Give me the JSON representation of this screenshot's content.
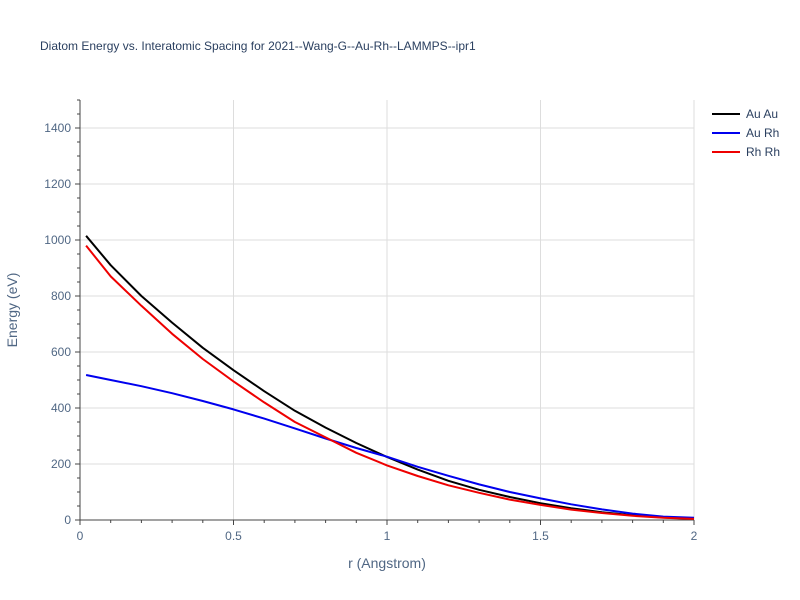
{
  "chart_data": {
    "type": "line",
    "title": "Diatom Energy vs. Interatomic Spacing for 2021--Wang-G--Au-Rh--LAMMPS--ipr1",
    "xlabel": "r (Angstrom)",
    "ylabel": "Energy (eV)",
    "xlim": [
      0,
      2
    ],
    "ylim": [
      0,
      1500
    ],
    "x_ticks": [
      {
        "value": 0,
        "label": "0"
      },
      {
        "value": 0.5,
        "label": "0.5"
      },
      {
        "value": 1,
        "label": "1"
      },
      {
        "value": 1.5,
        "label": "1.5"
      },
      {
        "value": 2,
        "label": "2"
      }
    ],
    "y_ticks": [
      {
        "value": 0,
        "label": "0"
      },
      {
        "value": 200,
        "label": "200"
      },
      {
        "value": 400,
        "label": "400"
      },
      {
        "value": 600,
        "label": "600"
      },
      {
        "value": 800,
        "label": "800"
      },
      {
        "value": 1000,
        "label": "1000"
      },
      {
        "value": 1200,
        "label": "1200"
      },
      {
        "value": 1400,
        "label": "1400"
      }
    ],
    "grid": true,
    "legend_position": "top-right",
    "x": [
      0.02,
      0.1,
      0.2,
      0.3,
      0.4,
      0.5,
      0.6,
      0.7,
      0.8,
      0.9,
      1.0,
      1.1,
      1.2,
      1.3,
      1.4,
      1.5,
      1.6,
      1.7,
      1.8,
      1.9,
      2.0
    ],
    "series": [
      {
        "name": "Au Au",
        "color": "#000000",
        "values": [
          1015,
          910,
          800,
          705,
          615,
          535,
          460,
          390,
          330,
          275,
          225,
          180,
          140,
          108,
          82,
          60,
          42,
          28,
          17,
          9,
          5
        ]
      },
      {
        "name": "Au Rh",
        "color": "#0000ee",
        "values": [
          518,
          500,
          478,
          453,
          425,
          395,
          362,
          327,
          291,
          257,
          226,
          190,
          158,
          127,
          100,
          77,
          56,
          38,
          23,
          12,
          8
        ]
      },
      {
        "name": "Rh Rh",
        "color": "#ee0000",
        "values": [
          980,
          870,
          765,
          665,
          575,
          495,
          420,
          350,
          295,
          240,
          195,
          157,
          124,
          97,
          73,
          54,
          37,
          25,
          15,
          8,
          4
        ]
      }
    ]
  }
}
